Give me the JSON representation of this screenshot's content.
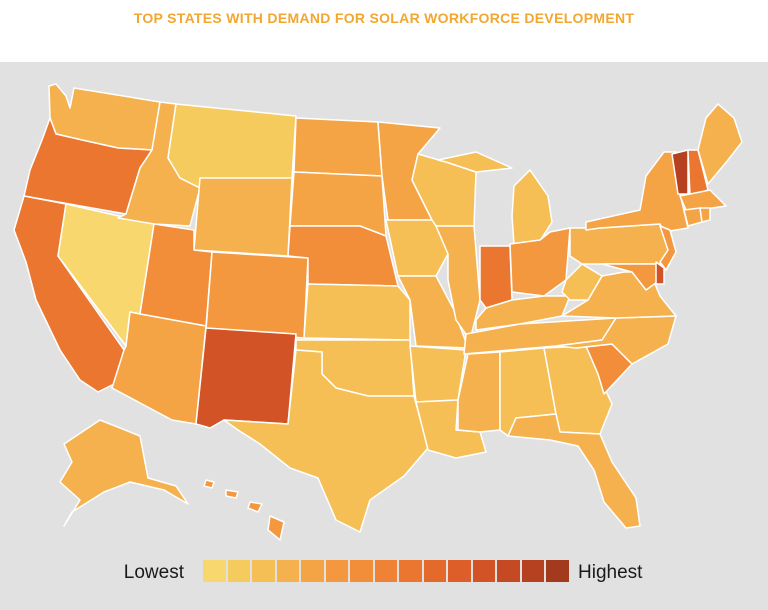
{
  "title": "TOP STATES WITH DEMAND FOR SOLAR WORKFORCE DEVELOPMENT",
  "legend": {
    "low_label": "Lowest",
    "high_label": "Highest",
    "scale_colors": [
      "#f7d76e",
      "#f6cb5e",
      "#f5bf55",
      "#f5b14d",
      "#f4a445",
      "#f3983f",
      "#f28d39",
      "#ef8234",
      "#ea7630",
      "#e46a2c",
      "#dd5e28",
      "#d25426",
      "#c54a23",
      "#b54120",
      "#a3391d"
    ]
  },
  "colors": {
    "panel_background": "#e1e1e1",
    "state_border": "#ffffff",
    "title": "#f3a630",
    "lowest": "#f7d76e",
    "highest": "#a3391d"
  },
  "demand_levels": {
    "MT": 2,
    "NV": 1,
    "ID": 4,
    "WY": 4,
    "WA": 4,
    "IA": 3,
    "KS": 3,
    "WI": 3,
    "MI": 3,
    "TX": 3,
    "OK": 3,
    "AR": 3,
    "LA": 3,
    "AL": 3,
    "GA": 3,
    "MS": 4,
    "MO": 4,
    "IL": 4,
    "KY": 4,
    "TN": 4,
    "WV": 3,
    "VA": 4,
    "NC": 4,
    "PA": 4,
    "FL": 4,
    "AK": 4,
    "ME": 4,
    "AZ": 5,
    "MN": 5,
    "ND": 5,
    "SD": 5,
    "NY": 5,
    "OH": 6,
    "CO": 6,
    "HI": 6,
    "NE": 7,
    "SC": 7,
    "UT": 7,
    "NJ": 6,
    "MD": 6,
    "MA": 5,
    "CT": 5,
    "RI": 5,
    "DE": 12,
    "OR": 9,
    "CA": 9,
    "IN": 9,
    "NH": 9,
    "NM": 12,
    "VT": 14
  }
}
